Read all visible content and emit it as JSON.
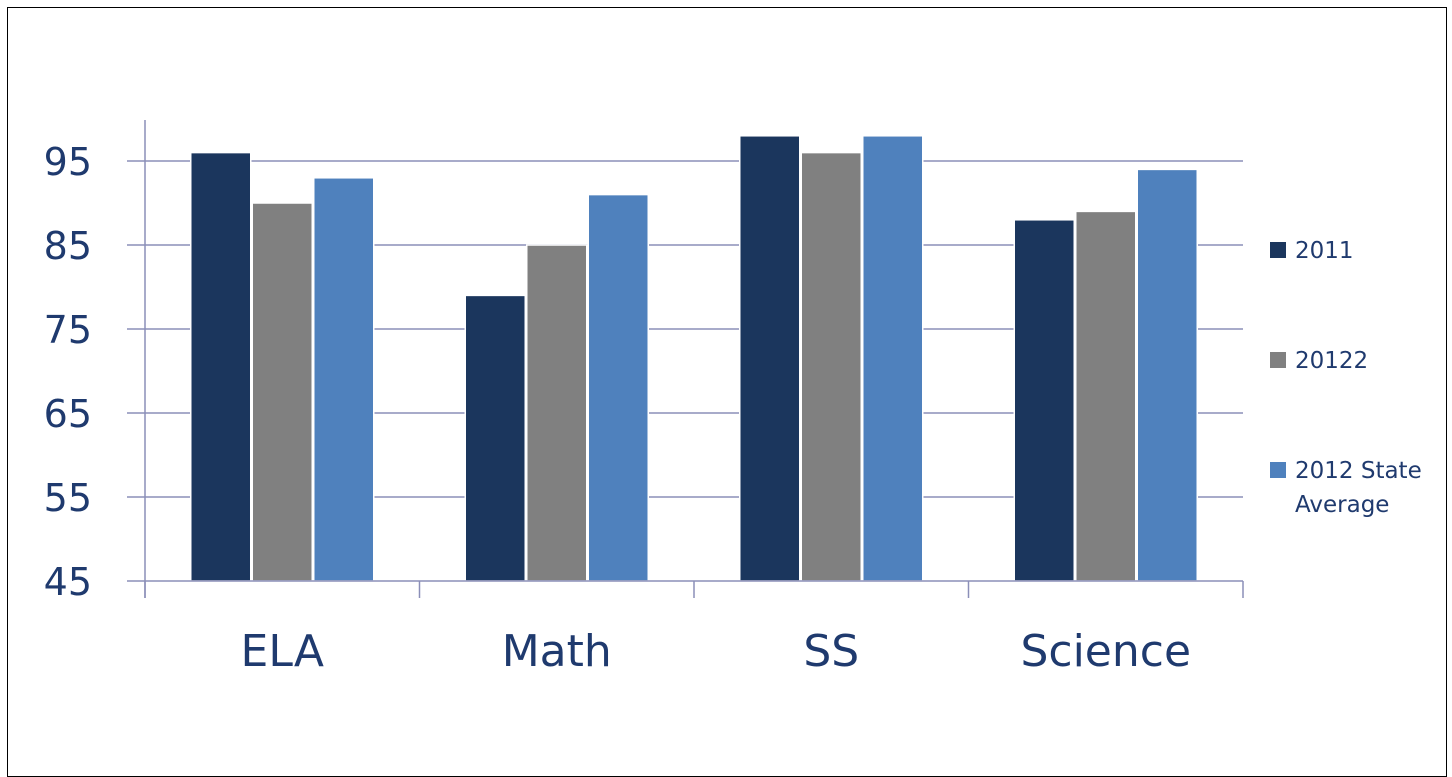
{
  "chart_data": {
    "type": "bar",
    "categories": [
      "ELA",
      "Math",
      "SS",
      "Science"
    ],
    "series": [
      {
        "name": "2011",
        "values": [
          96,
          79,
          98,
          88
        ],
        "color": "#1b365d"
      },
      {
        "name": "20122",
        "values": [
          90,
          85,
          96,
          89
        ],
        "color": "#808080"
      },
      {
        "name": "2012 State Average",
        "values": [
          93,
          91,
          98,
          94
        ],
        "color": "#4f81bd"
      }
    ],
    "yticks": [
      "45",
      "55",
      "65",
      "75",
      "85",
      "95"
    ],
    "ylim": [
      45,
      100
    ],
    "grid": true,
    "legend_position": "right",
    "axis_color": "#8b8fb8",
    "label_color": "#1f3a6e"
  }
}
